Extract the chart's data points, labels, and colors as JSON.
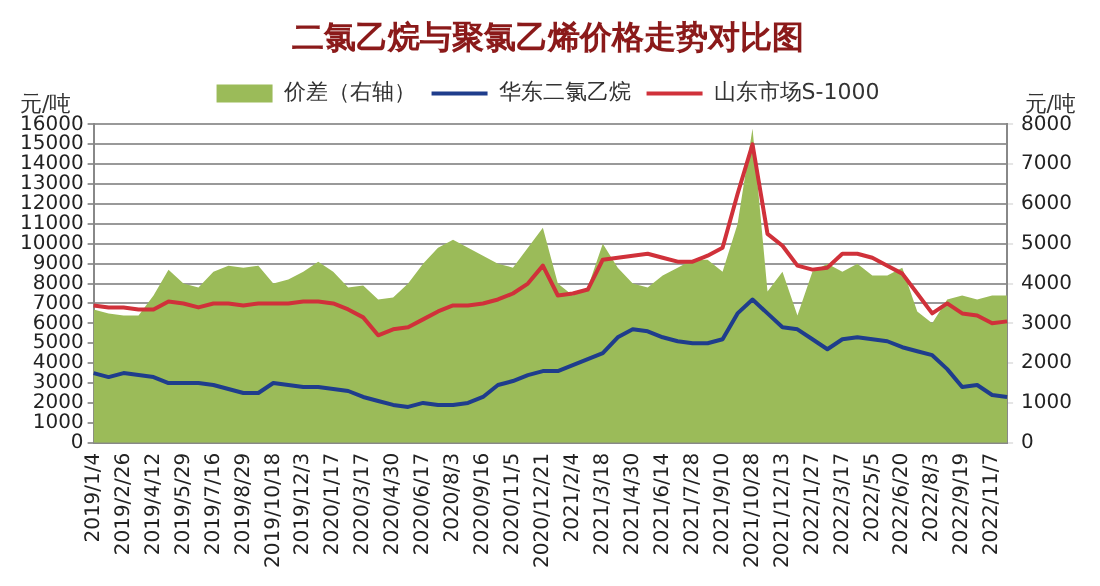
{
  "chart_data": {
    "type": "line",
    "title": "二氯乙烷与聚氯乙烯价格走势对比图",
    "ylabel": "元/吨",
    "y2label": "元/吨",
    "categories": [
      "2019/1/4",
      null,
      "2019/2/26",
      null,
      "2019/4/12",
      null,
      "2019/5/29",
      null,
      "2019/7/16",
      null,
      "2019/8/29",
      null,
      "2019/10/18",
      null,
      "2019/12/3",
      null,
      "2020/1/17",
      null,
      "2020/3/17",
      null,
      "2020/4/30",
      null,
      "2020/6/17",
      null,
      "2020/8/3",
      null,
      "2020/9/16",
      null,
      "2020/11/5",
      null,
      "2020/12/21",
      null,
      "2021/2/4",
      null,
      "2021/3/18",
      null,
      "2021/4/30",
      null,
      "2021/6/14",
      null,
      "2021/7/28",
      null,
      "2021/9/10",
      null,
      "2021/10/28",
      null,
      "2021/12/13",
      null,
      "2022/1/27",
      null,
      "2022/3/17",
      null,
      "2022/5/5",
      null,
      "2022/6/20",
      null,
      "2022/8/3",
      null,
      "2022/9/19",
      null,
      "2022/11/7",
      null
    ],
    "series": [
      {
        "name": "价差（右轴）",
        "type": "area",
        "axis": "y2",
        "color": "#9bbb59",
        "values": [
          3350,
          3250,
          3200,
          3200,
          3700,
          4350,
          4000,
          3900,
          4300,
          4450,
          4400,
          4450,
          4000,
          4100,
          4300,
          4550,
          4300,
          3900,
          3950,
          3600,
          3650,
          4000,
          4500,
          4900,
          5100,
          4900,
          4700,
          4500,
          4400,
          4900,
          5400,
          4000,
          3700,
          3900,
          5000,
          4400,
          4000,
          3900,
          4200,
          4400,
          4600,
          4600,
          4300,
          5500,
          7900,
          3800,
          4300,
          3200,
          4300,
          4500,
          4300,
          4500,
          4200,
          4200,
          4400,
          3300,
          3000,
          3600,
          3700,
          3600,
          3700,
          3700
        ]
      },
      {
        "name": "华东二氯乙烷",
        "color": "#1f3d8c",
        "values": [
          3500,
          3300,
          3500,
          3400,
          3300,
          3000,
          3000,
          3000,
          2900,
          2700,
          2500,
          2500,
          3000,
          2900,
          2800,
          2800,
          2700,
          2600,
          2300,
          2100,
          1900,
          1800,
          2000,
          1900,
          1900,
          2000,
          2300,
          2900,
          3100,
          3400,
          3600,
          3600,
          3900,
          4200,
          4500,
          5300,
          5700,
          5600,
          5300,
          5100,
          5000,
          5000,
          5200,
          6500,
          7200,
          6500,
          5800,
          5700,
          5200,
          4700,
          5200,
          5300,
          5200,
          5100,
          4800,
          4600,
          4400,
          3700,
          2800,
          2900,
          2400,
          2300
        ]
      },
      {
        "name": "山东市场S-1000",
        "color": "#d0313a",
        "values": [
          6900,
          6800,
          6800,
          6700,
          6700,
          7100,
          7000,
          6800,
          7000,
          7000,
          6900,
          7000,
          7000,
          7000,
          7100,
          7100,
          7000,
          6700,
          6300,
          5400,
          5700,
          5800,
          6200,
          6600,
          6900,
          6900,
          7000,
          7200,
          7500,
          8000,
          8900,
          7400,
          7500,
          7700,
          9200,
          9300,
          9400,
          9500,
          9300,
          9100,
          9100,
          9400,
          9800,
          12500,
          15000,
          10500,
          9900,
          8900,
          8700,
          8800,
          9500,
          9500,
          9300,
          8900,
          8500,
          7500,
          6500,
          7000,
          6500,
          6400,
          6000,
          6100
        ]
      }
    ],
    "ylim": [
      0,
      16000
    ],
    "yticks": [
      0,
      1000,
      2000,
      3000,
      4000,
      5000,
      6000,
      7000,
      8000,
      9000,
      10000,
      11000,
      12000,
      13000,
      14000,
      15000,
      16000
    ],
    "y2lim": [
      0,
      8000
    ],
    "y2ticks": [
      0,
      1000,
      2000,
      3000,
      4000,
      5000,
      6000,
      7000,
      8000
    ],
    "grid": "y",
    "legend": "top"
  }
}
